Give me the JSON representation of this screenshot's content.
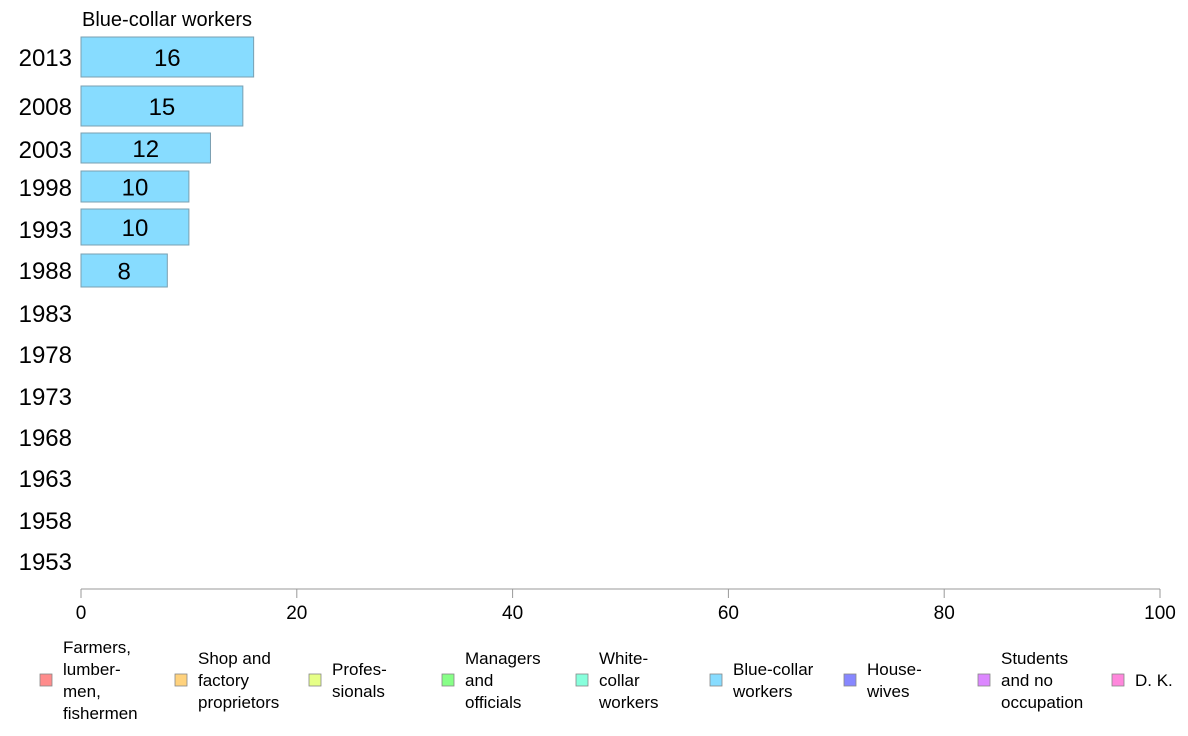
{
  "chart_data": {
    "type": "bar",
    "orientation": "horizontal",
    "series_title": "Blue-collar workers",
    "categories": [
      "2013",
      "2008",
      "2003",
      "1998",
      "1993",
      "1988",
      "1983",
      "1978",
      "1973",
      "1968",
      "1963",
      "1958",
      "1953"
    ],
    "series": [
      {
        "name": "Blue-collar workers",
        "values": [
          16,
          15,
          12,
          10,
          10,
          8,
          null,
          null,
          null,
          null,
          null,
          null,
          null
        ],
        "color": "#87dcff"
      }
    ],
    "xlim": [
      0,
      100
    ],
    "xticks": [
      "0",
      "20",
      "40",
      "60",
      "80",
      "100"
    ],
    "grid": false,
    "legend_position": "bottom",
    "legend": [
      {
        "lines": [
          "Farmers,",
          "lumber-",
          "men,",
          "fishermen"
        ],
        "color": "#ff8c8c"
      },
      {
        "lines": [
          "Shop and",
          "factory",
          "proprietors"
        ],
        "color": "#ffd27d"
      },
      {
        "lines": [
          "Profes-",
          "sionals"
        ],
        "color": "#e6ff87"
      },
      {
        "lines": [
          "Managers",
          "and",
          "officials"
        ],
        "color": "#87ff87"
      },
      {
        "lines": [
          "White-",
          "collar",
          "workers"
        ],
        "color": "#87ffdc"
      },
      {
        "lines": [
          "Blue-collar",
          "workers"
        ],
        "color": "#87dcff"
      },
      {
        "lines": [
          "House-",
          "wives"
        ],
        "color": "#8787ff"
      },
      {
        "lines": [
          "Students",
          "and no",
          "occupation"
        ],
        "color": "#dc87ff"
      },
      {
        "lines": [
          "D. K."
        ],
        "color": "#ff87dc"
      }
    ]
  }
}
